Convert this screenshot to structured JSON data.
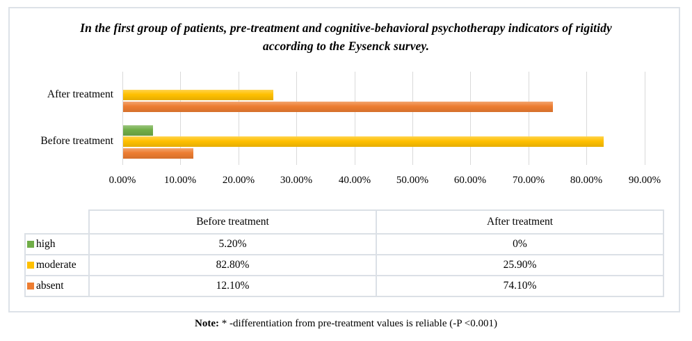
{
  "title": "In the first group of patients, pre-treatment and cognitive-behavioral psychotherapy indicators of rigitidy according to the Eysenck survey.",
  "chart_data": {
    "type": "bar",
    "orientation": "horizontal",
    "title": "In the first group of patients, pre-treatment and cognitive-behavioral psychotherapy indicators of rigitidy according to the Eysenck survey.",
    "categories": [
      "After treatment",
      "Before treatment"
    ],
    "series": [
      {
        "name": "high",
        "color": "#70AD47",
        "values": [
          0,
          5.2
        ]
      },
      {
        "name": "moderate",
        "color": "#FFC000",
        "values": [
          25.9,
          82.8
        ]
      },
      {
        "name": "absent",
        "color": "#ED7D31",
        "values": [
          74.1,
          12.1
        ]
      }
    ],
    "x_ticks": [
      "0.00%",
      "10.00%",
      "20.00%",
      "30.00%",
      "40.00%",
      "50.00%",
      "60.00%",
      "70.00%",
      "80.00%",
      "90.00%"
    ],
    "xlim": [
      0,
      90
    ],
    "gridlines": true,
    "gridline_color": "#d9d9d9",
    "legend_position": "table-left"
  },
  "table": {
    "col_headers": [
      "",
      "Before treatment",
      "After treatment"
    ],
    "rows": [
      {
        "label": "high",
        "color": "#70AD47",
        "before": "5.20%",
        "after": "0%"
      },
      {
        "label": "moderate",
        "color": "#FFC000",
        "before": "82.80%",
        "after": "25.90%"
      },
      {
        "label": "absent",
        "color": "#ED7D31",
        "before": "12.10%",
        "after": "74.10%"
      }
    ]
  },
  "note": {
    "label": "Note:",
    "text": " * -differentiation from pre-treatment values is reliable (-P <0.001)"
  }
}
